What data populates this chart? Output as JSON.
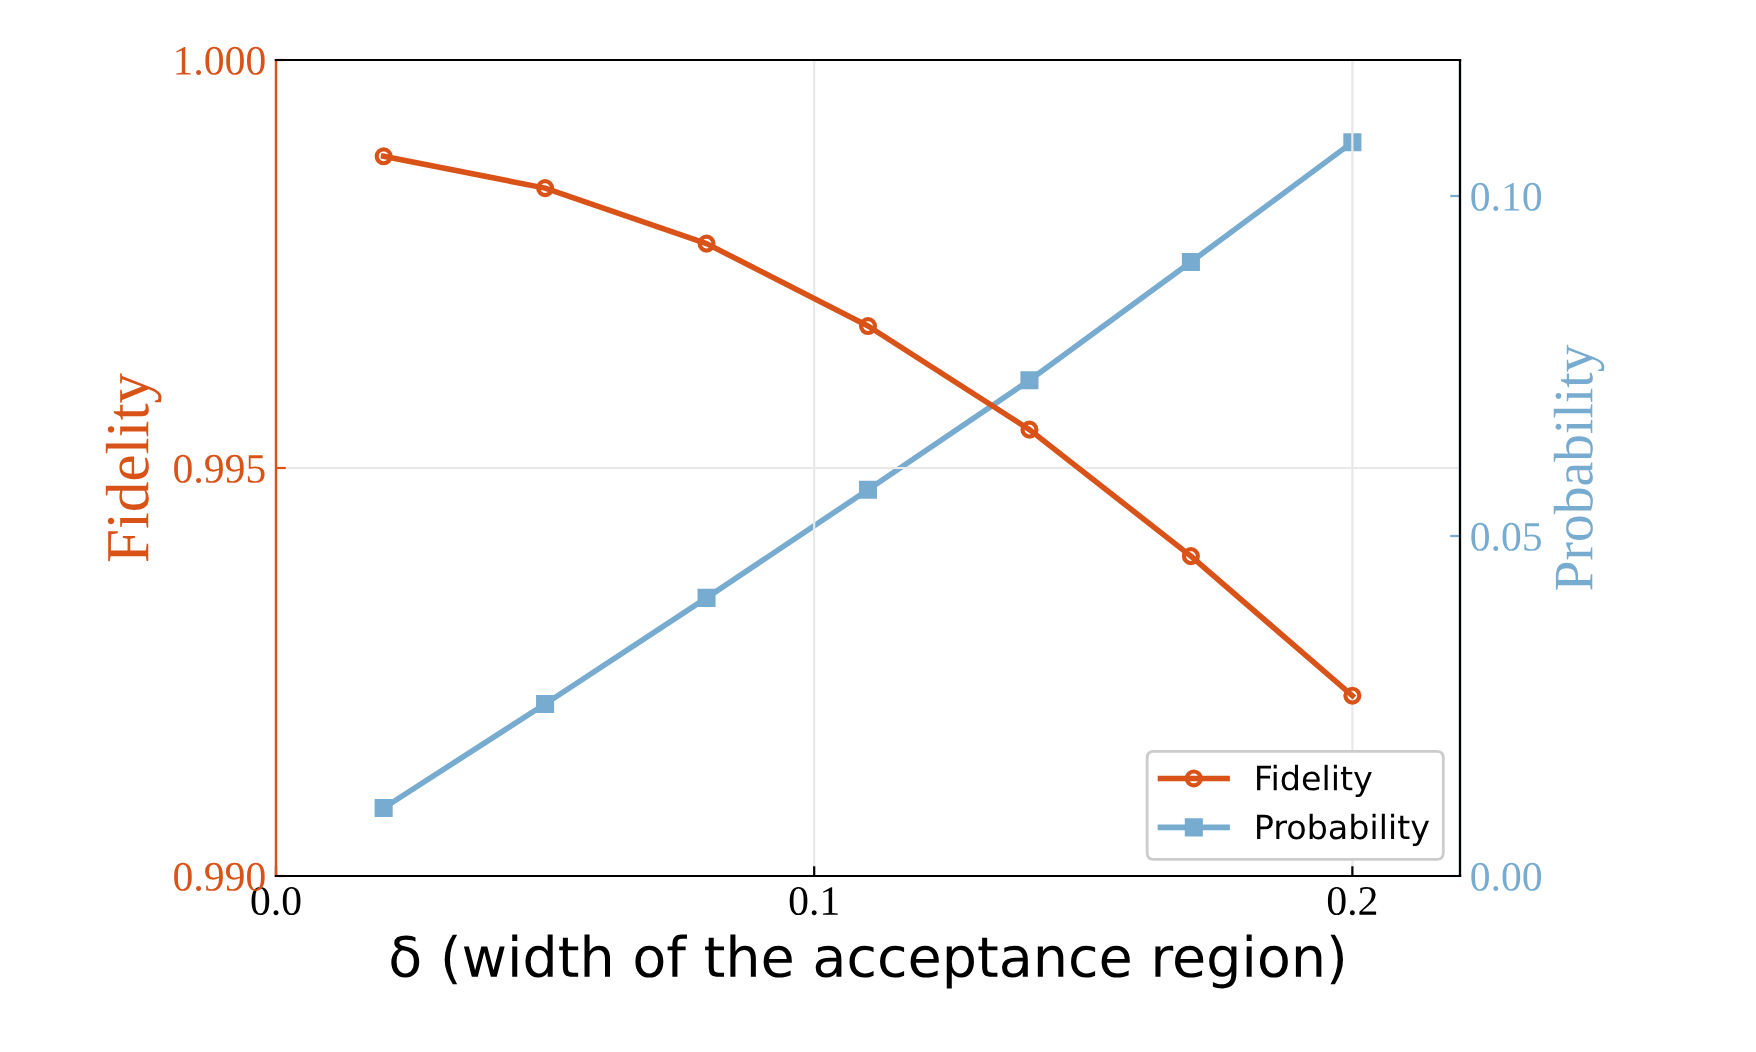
{
  "chart_data": {
    "type": "line",
    "xlabel": "δ (width of the acceptance region)",
    "ylabel": "Fidelity",
    "y2label": "Probability",
    "x": [
      0.02,
      0.05,
      0.08,
      0.11,
      0.14,
      0.17,
      0.2
    ],
    "series": [
      {
        "name": "Fidelity",
        "color": "#d95319",
        "marker": "circle",
        "values": [
          0.99882,
          0.99843,
          0.99775,
          0.99674,
          0.99547,
          0.99392,
          0.99221
        ]
      },
      {
        "name": "Probability",
        "color": "#77acd0",
        "marker": "square",
        "axis": "y2",
        "values": [
          0.01,
          0.0253,
          0.0409,
          0.0568,
          0.0729,
          0.0903,
          0.1079
        ]
      }
    ],
    "xlim": [
      0,
      0.22
    ],
    "xticks": [
      {
        "value": 0,
        "label": "0.0"
      },
      0.1,
      0.2
    ],
    "ylim": [
      0.99,
      1.0
    ],
    "yticks": [
      {
        "value": 0.99,
        "label": "0.990"
      },
      0.995,
      {
        "value": 1.0,
        "label": "1.000"
      }
    ],
    "y2lim": [
      0,
      0.12
    ],
    "y2ticks": [
      {
        "value": 0,
        "label": "0.00"
      },
      0.05,
      {
        "value": 0.1,
        "label": "0.10"
      }
    ],
    "grid": true,
    "legend": "bottom right",
    "line_style": "solid"
  }
}
